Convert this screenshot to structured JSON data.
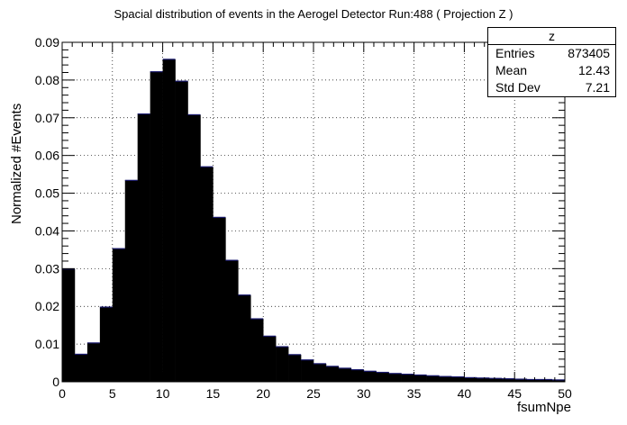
{
  "chart_data": {
    "type": "bar",
    "title": "Spacial distribution of events in the Aerogel Detector Run:488 ( Projection Z )",
    "xlabel": "fsumNpe",
    "ylabel": "Normalized #Events",
    "xlim": [
      0,
      50
    ],
    "ylim": [
      0,
      0.09
    ],
    "bin_width": 1.25,
    "x_ticks": [
      "0",
      "5",
      "10",
      "15",
      "20",
      "25",
      "30",
      "35",
      "40",
      "45",
      "50"
    ],
    "y_ticks": [
      "0",
      "0.01",
      "0.02",
      "0.03",
      "0.04",
      "0.05",
      "0.06",
      "0.07",
      "0.08",
      "0.09"
    ],
    "grid": true,
    "values": [
      0.0299,
      0.0073,
      0.0103,
      0.0198,
      0.0353,
      0.0534,
      0.071,
      0.0822,
      0.0855,
      0.0797,
      0.0708,
      0.057,
      0.0436,
      0.0322,
      0.023,
      0.0167,
      0.0121,
      0.0093,
      0.0072,
      0.0058,
      0.0048,
      0.0041,
      0.0036,
      0.0032,
      0.0028,
      0.0025,
      0.0022,
      0.002,
      0.0018,
      0.0016,
      0.0014,
      0.0013,
      0.0011,
      0.001,
      0.0009,
      0.0008,
      0.0007,
      0.0006,
      0.0006,
      0.0005
    ],
    "stats": {
      "name": "z",
      "rows": [
        {
          "label": "Entries",
          "value": "873405"
        },
        {
          "label": "Mean",
          "value": "12.43"
        },
        {
          "label": "Std Dev",
          "value": "7.21"
        }
      ]
    }
  }
}
